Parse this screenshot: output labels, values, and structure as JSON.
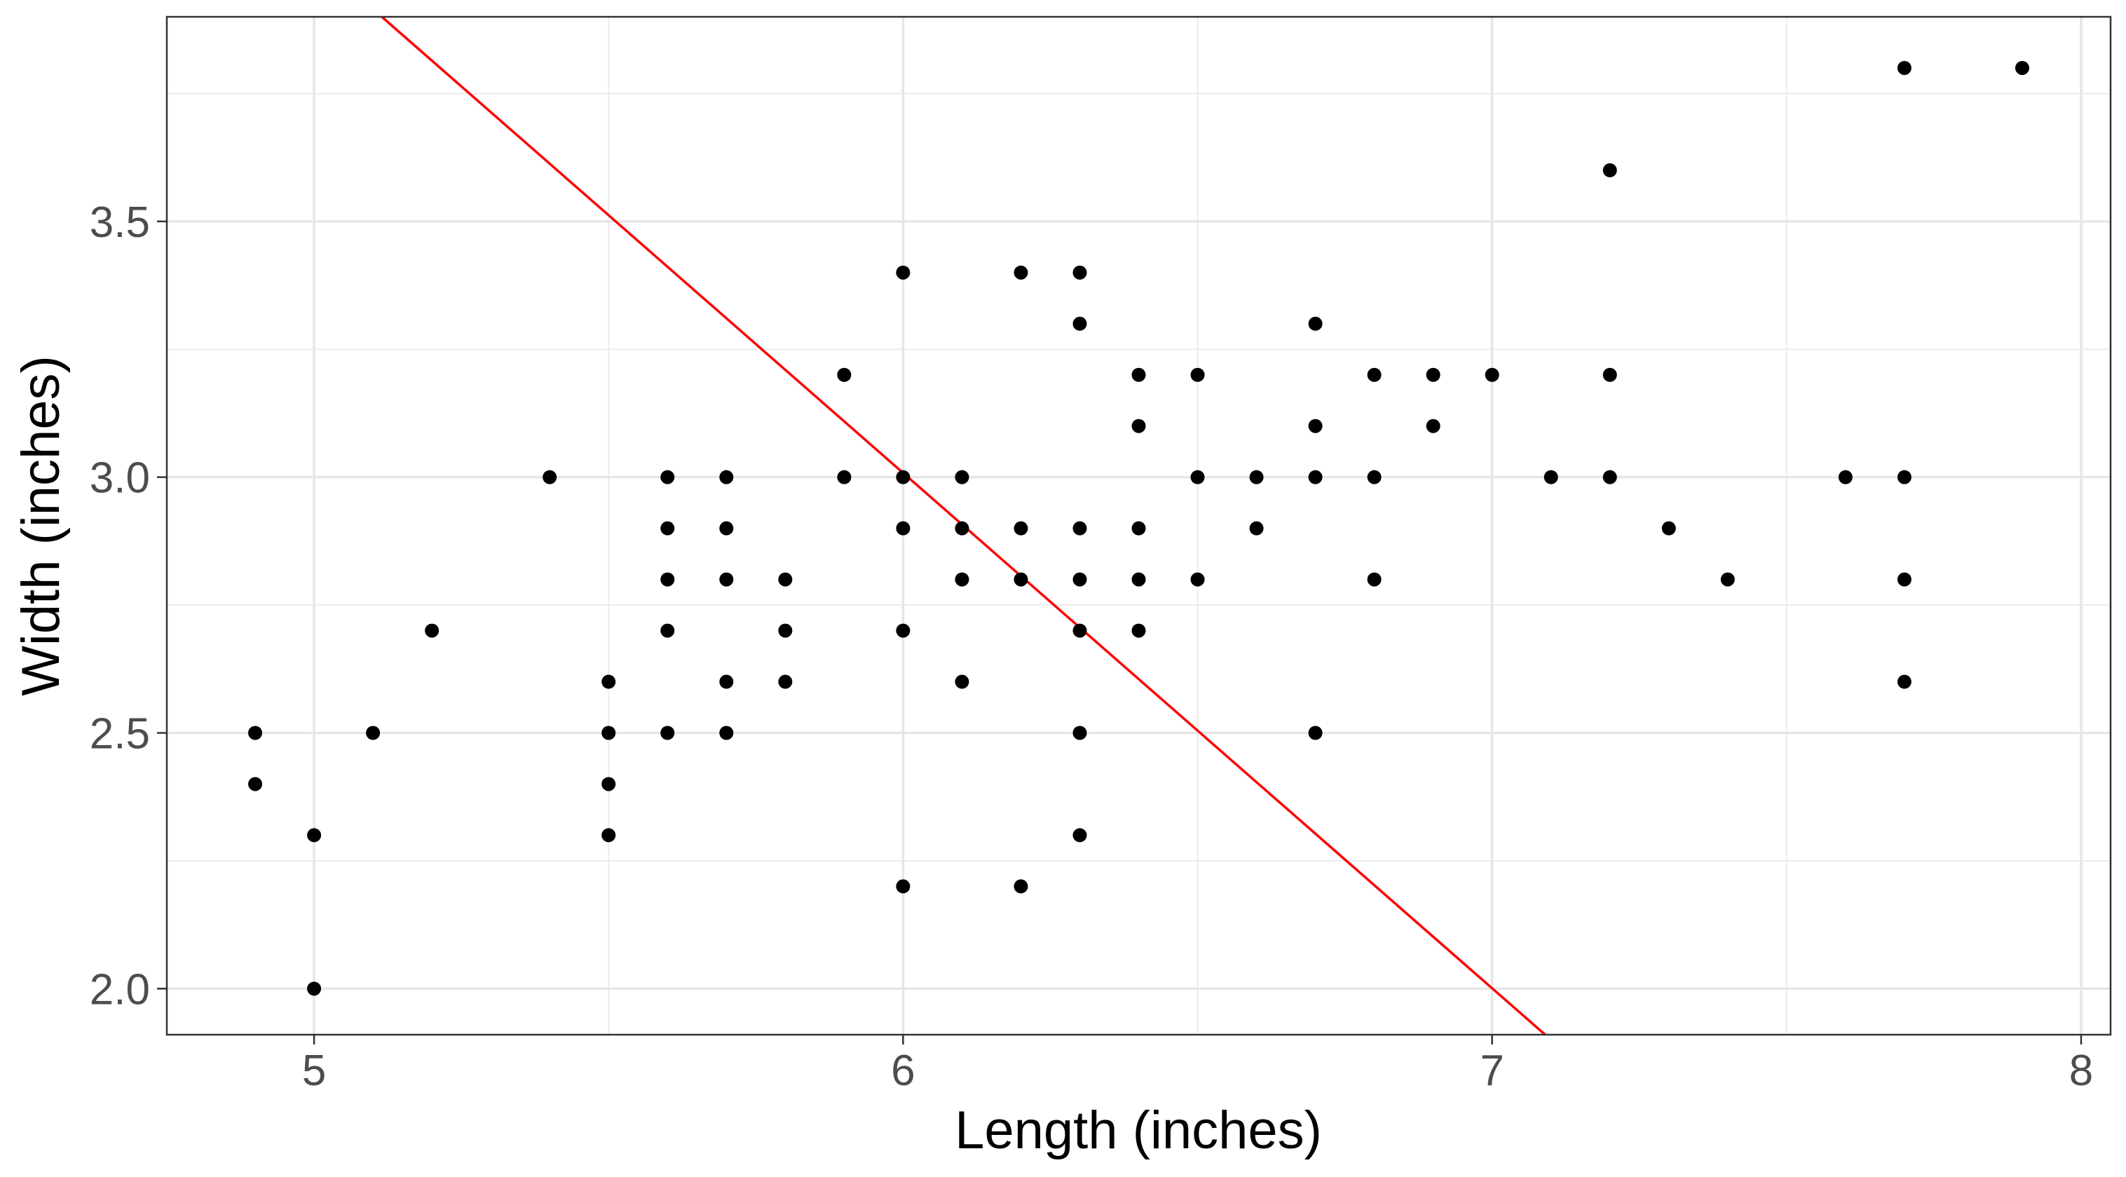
{
  "chart_data": {
    "type": "scatter",
    "title": "",
    "xlabel": "Length (inches)",
    "ylabel": "Width (inches)",
    "xlim": [
      4.75,
      8.05
    ],
    "ylim": [
      1.91,
      3.9
    ],
    "x_ticks": [
      5,
      6,
      7,
      8
    ],
    "x_tick_labels": [
      "5",
      "6",
      "7",
      "8"
    ],
    "y_ticks": [
      2.0,
      2.5,
      3.0,
      3.5
    ],
    "y_tick_labels": [
      "2.0",
      "2.5",
      "3.0",
      "3.5"
    ],
    "grid": true,
    "point_color": "#000000",
    "line_color": "#ff0000",
    "points": [
      {
        "x": 4.9,
        "y": 2.5
      },
      {
        "x": 4.9,
        "y": 2.4
      },
      {
        "x": 5.0,
        "y": 2.3
      },
      {
        "x": 5.0,
        "y": 2.0
      },
      {
        "x": 5.1,
        "y": 2.5
      },
      {
        "x": 5.2,
        "y": 2.7
      },
      {
        "x": 5.4,
        "y": 3.0
      },
      {
        "x": 5.5,
        "y": 2.6
      },
      {
        "x": 5.5,
        "y": 2.5
      },
      {
        "x": 5.5,
        "y": 2.4
      },
      {
        "x": 5.5,
        "y": 2.3
      },
      {
        "x": 5.6,
        "y": 3.0
      },
      {
        "x": 5.6,
        "y": 2.9
      },
      {
        "x": 5.6,
        "y": 2.8
      },
      {
        "x": 5.6,
        "y": 2.7
      },
      {
        "x": 5.6,
        "y": 2.5
      },
      {
        "x": 5.7,
        "y": 3.0
      },
      {
        "x": 5.7,
        "y": 2.9
      },
      {
        "x": 5.7,
        "y": 2.8
      },
      {
        "x": 5.7,
        "y": 2.6
      },
      {
        "x": 5.7,
        "y": 2.5
      },
      {
        "x": 5.8,
        "y": 2.8
      },
      {
        "x": 5.8,
        "y": 2.7
      },
      {
        "x": 5.8,
        "y": 2.6
      },
      {
        "x": 5.9,
        "y": 3.2
      },
      {
        "x": 5.9,
        "y": 3.0
      },
      {
        "x": 6.0,
        "y": 3.4
      },
      {
        "x": 6.0,
        "y": 3.0
      },
      {
        "x": 6.0,
        "y": 2.9
      },
      {
        "x": 6.0,
        "y": 2.7
      },
      {
        "x": 6.0,
        "y": 2.2
      },
      {
        "x": 6.1,
        "y": 3.0
      },
      {
        "x": 6.1,
        "y": 2.9
      },
      {
        "x": 6.1,
        "y": 2.8
      },
      {
        "x": 6.1,
        "y": 2.6
      },
      {
        "x": 6.2,
        "y": 3.4
      },
      {
        "x": 6.2,
        "y": 2.9
      },
      {
        "x": 6.2,
        "y": 2.8
      },
      {
        "x": 6.2,
        "y": 2.2
      },
      {
        "x": 6.3,
        "y": 3.4
      },
      {
        "x": 6.3,
        "y": 3.3
      },
      {
        "x": 6.3,
        "y": 2.9
      },
      {
        "x": 6.3,
        "y": 2.8
      },
      {
        "x": 6.3,
        "y": 2.7
      },
      {
        "x": 6.3,
        "y": 2.5
      },
      {
        "x": 6.3,
        "y": 2.3
      },
      {
        "x": 6.4,
        "y": 3.2
      },
      {
        "x": 6.4,
        "y": 3.1
      },
      {
        "x": 6.4,
        "y": 2.9
      },
      {
        "x": 6.4,
        "y": 2.8
      },
      {
        "x": 6.4,
        "y": 2.7
      },
      {
        "x": 6.5,
        "y": 3.2
      },
      {
        "x": 6.5,
        "y": 3.0
      },
      {
        "x": 6.5,
        "y": 2.8
      },
      {
        "x": 6.6,
        "y": 3.0
      },
      {
        "x": 6.6,
        "y": 2.9
      },
      {
        "x": 6.7,
        "y": 3.3
      },
      {
        "x": 6.7,
        "y": 3.1
      },
      {
        "x": 6.7,
        "y": 3.0
      },
      {
        "x": 6.7,
        "y": 2.5
      },
      {
        "x": 6.8,
        "y": 3.2
      },
      {
        "x": 6.8,
        "y": 3.0
      },
      {
        "x": 6.8,
        "y": 2.8
      },
      {
        "x": 6.9,
        "y": 3.2
      },
      {
        "x": 6.9,
        "y": 3.1
      },
      {
        "x": 7.0,
        "y": 3.2
      },
      {
        "x": 7.1,
        "y": 3.0
      },
      {
        "x": 7.2,
        "y": 3.6
      },
      {
        "x": 7.2,
        "y": 3.2
      },
      {
        "x": 7.2,
        "y": 3.0
      },
      {
        "x": 7.3,
        "y": 2.9
      },
      {
        "x": 7.4,
        "y": 2.8
      },
      {
        "x": 7.6,
        "y": 3.0
      },
      {
        "x": 7.7,
        "y": 3.8
      },
      {
        "x": 7.7,
        "y": 3.0
      },
      {
        "x": 7.7,
        "y": 2.8
      },
      {
        "x": 7.7,
        "y": 2.6
      },
      {
        "x": 7.9,
        "y": 3.8
      }
    ],
    "line": {
      "x": [
        5.115,
        7.09
      ],
      "y": [
        3.9,
        1.91
      ]
    }
  }
}
